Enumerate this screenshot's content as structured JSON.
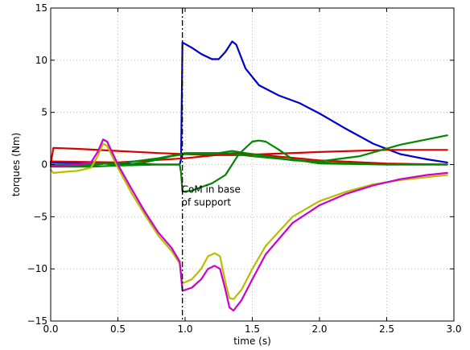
{
  "chart_data": {
    "type": "line",
    "title": "",
    "xlabel": "time (s)",
    "ylabel": "torques (Nm)",
    "xlim": [
      0.0,
      3.0
    ],
    "ylim": [
      -15,
      15
    ],
    "xticks": [
      "0.0",
      "0.5",
      "1.0",
      "1.5",
      "2.0",
      "2.5",
      "3.0"
    ],
    "yticks": [
      "15",
      "10",
      "5",
      "0",
      "−5",
      "−10",
      "−15"
    ],
    "grid": true,
    "vline": {
      "x": 0.98,
      "style": "dash-dot",
      "color": "#000000"
    },
    "annotation": {
      "lines": [
        "CoM in base",
        "of support"
      ],
      "x": 0.98,
      "y": -2.7
    },
    "series": [
      {
        "color": "#0000cc",
        "x": [
          0.0,
          0.3,
          0.5,
          0.8,
          0.96,
          0.97,
          0.98,
          1.05,
          1.12,
          1.2,
          1.25,
          1.3,
          1.35,
          1.38,
          1.45,
          1.55,
          1.7,
          1.85,
          2.0,
          2.2,
          2.4,
          2.6,
          2.8,
          2.95
        ],
        "y": [
          0.2,
          0.2,
          0.1,
          0.0,
          0.0,
          0.5,
          11.7,
          11.2,
          10.6,
          10.1,
          10.1,
          10.8,
          11.8,
          11.5,
          9.2,
          7.6,
          6.6,
          5.9,
          4.9,
          3.4,
          2.0,
          1.0,
          0.5,
          0.2
        ]
      },
      {
        "color": "#dd0000",
        "x": [
          0.0,
          0.02,
          0.2,
          0.5,
          0.8,
          1.0,
          1.2,
          1.4,
          1.6,
          2.0,
          2.5,
          2.95
        ],
        "y": [
          0.0,
          1.6,
          1.5,
          1.3,
          1.1,
          1.0,
          0.9,
          0.9,
          1.0,
          1.2,
          1.4,
          1.4
        ]
      },
      {
        "color": "#dd0000",
        "x": [
          0.0,
          0.5,
          1.0,
          1.3,
          1.35,
          1.5,
          2.0,
          2.5,
          2.95
        ],
        "y": [
          0.3,
          0.2,
          0.6,
          1.0,
          1.1,
          1.0,
          0.4,
          0.1,
          0.0
        ]
      },
      {
        "color": "#008800",
        "x": [
          0.0,
          0.3,
          0.5,
          0.7,
          0.9,
          1.0,
          1.2,
          1.3,
          1.35,
          1.4,
          1.6,
          1.8,
          2.0,
          2.3,
          2.6,
          2.95
        ],
        "y": [
          -0.2,
          -0.2,
          -0.1,
          0.2,
          0.8,
          1.0,
          1.0,
          1.2,
          1.3,
          1.2,
          0.8,
          0.4,
          0.3,
          0.8,
          1.9,
          2.8
        ]
      },
      {
        "color": "#008800",
        "x": [
          0.0,
          0.3,
          0.4,
          0.5,
          0.8,
          0.96,
          0.97,
          0.98,
          1.05,
          1.2,
          1.3,
          1.4,
          1.5,
          1.55,
          1.6,
          1.7,
          1.8,
          2.0,
          2.5,
          2.95
        ],
        "y": [
          -0.1,
          -0.1,
          0.1,
          -0.1,
          0.0,
          0.0,
          -0.8,
          -2.6,
          -2.5,
          -1.8,
          -1.0,
          1.0,
          2.2,
          2.3,
          2.2,
          1.4,
          0.5,
          0.1,
          0.0,
          0.0
        ]
      },
      {
        "color": "#008800",
        "x": [
          0.0,
          0.5,
          0.8,
          1.0,
          1.3,
          1.5,
          2.0,
          2.5,
          2.95
        ],
        "y": [
          0.0,
          0.1,
          0.6,
          1.1,
          1.1,
          0.8,
          0.2,
          0.0,
          0.0
        ]
      },
      {
        "color": "#bbbb00",
        "x": [
          0.0,
          0.02,
          0.1,
          0.2,
          0.3,
          0.35,
          0.39,
          0.42,
          0.5,
          0.6,
          0.7,
          0.8,
          0.9,
          0.96,
          0.98,
          1.05,
          1.12,
          1.17,
          1.22,
          1.26,
          1.3,
          1.33,
          1.36,
          1.42,
          1.5,
          1.6,
          1.8,
          2.0,
          2.2,
          2.4,
          2.6,
          2.8,
          2.95
        ],
        "y": [
          -0.5,
          -0.8,
          -0.7,
          -0.6,
          -0.3,
          0.8,
          2.0,
          1.8,
          -0.3,
          -2.7,
          -4.8,
          -6.8,
          -8.3,
          -9.5,
          -11.4,
          -11.0,
          -10.0,
          -8.8,
          -8.5,
          -8.8,
          -11.3,
          -12.8,
          -12.9,
          -12.0,
          -10.0,
          -7.8,
          -5.0,
          -3.5,
          -2.6,
          -1.9,
          -1.5,
          -1.2,
          -1.0
        ]
      },
      {
        "color": "#cc00cc",
        "x": [
          0.0,
          0.1,
          0.2,
          0.3,
          0.35,
          0.39,
          0.42,
          0.5,
          0.6,
          0.7,
          0.8,
          0.9,
          0.96,
          0.98,
          1.05,
          1.12,
          1.17,
          1.22,
          1.26,
          1.3,
          1.33,
          1.36,
          1.42,
          1.5,
          1.6,
          1.8,
          2.0,
          2.2,
          2.4,
          2.6,
          2.8,
          2.95
        ],
        "y": [
          -0.1,
          -0.1,
          0.0,
          0.2,
          1.2,
          2.4,
          2.2,
          0.0,
          -2.3,
          -4.5,
          -6.5,
          -8.0,
          -9.3,
          -12.1,
          -11.8,
          -11.0,
          -10.0,
          -9.7,
          -10.0,
          -12.0,
          -13.7,
          -14.0,
          -13.0,
          -11.0,
          -8.6,
          -5.6,
          -3.9,
          -2.8,
          -2.0,
          -1.4,
          -1.0,
          -0.8
        ]
      }
    ]
  }
}
